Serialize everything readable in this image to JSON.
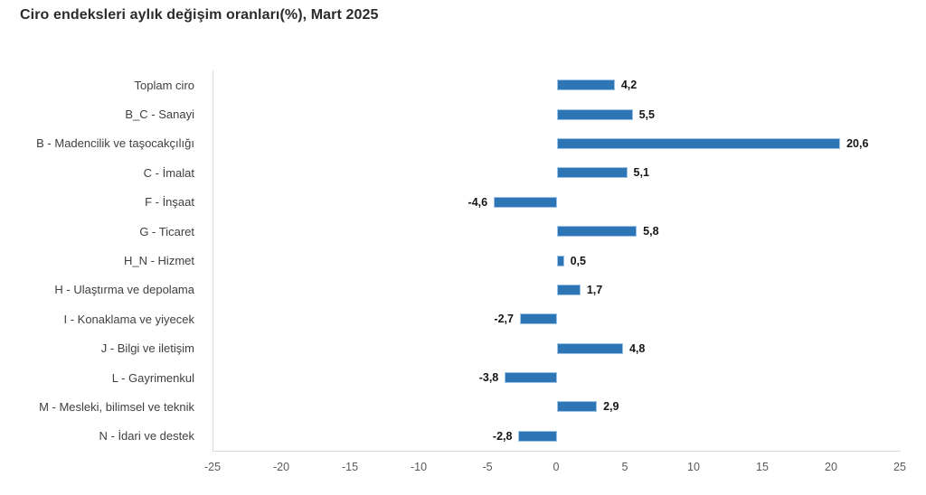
{
  "title": "Ciro endeksleri aylık değişim oranları(%), Mart 2025",
  "colors": {
    "bar_fill": "#2e75b6",
    "bar_border": "#9dc3e6",
    "axis_line": "#d9d9d9",
    "tick_text": "#595959",
    "category_text": "#3f3f3f",
    "value_text": "#151515",
    "title_text": "#2b2b2b"
  },
  "chart_data": {
    "type": "bar",
    "orientation": "horizontal",
    "title": "Ciro endeksleri aylık değişim oranları(%), Mart 2025",
    "categories": [
      "Toplam ciro",
      "B_C - Sanayi",
      "B - Madencilik ve taşocakçılığı",
      "C - İmalat",
      "F - İnşaat",
      "G - Ticaret",
      "H_N - Hizmet",
      "H - Ulaştırma ve depolama",
      "I - Konaklama ve yiyecek",
      "J - Bilgi ve iletişim",
      "L - Gayrimenkul",
      "M - Mesleki, bilimsel ve teknik",
      "N - İdari ve destek"
    ],
    "values": [
      4.2,
      5.5,
      20.6,
      5.1,
      -4.6,
      5.8,
      0.5,
      1.7,
      -2.7,
      4.8,
      -3.8,
      2.9,
      -2.8
    ],
    "value_labels": [
      "4,2",
      "5,5",
      "20,6",
      "5,1",
      "-4,6",
      "5,8",
      "0,5",
      "1,7",
      "-2,7",
      "4,8",
      "-3,8",
      "2,9",
      "-2,8"
    ],
    "xlabel": "",
    "ylabel": "",
    "xlim": [
      -25,
      25
    ],
    "x_ticks": [
      -25,
      -20,
      -15,
      -10,
      -5,
      0,
      5,
      10,
      15,
      20,
      25
    ],
    "x_tick_labels": [
      "-25",
      "-20",
      "-15",
      "-10",
      "-5",
      "0",
      "5",
      "10",
      "15",
      "20",
      "25"
    ],
    "grid": false,
    "legend_position": "none"
  }
}
